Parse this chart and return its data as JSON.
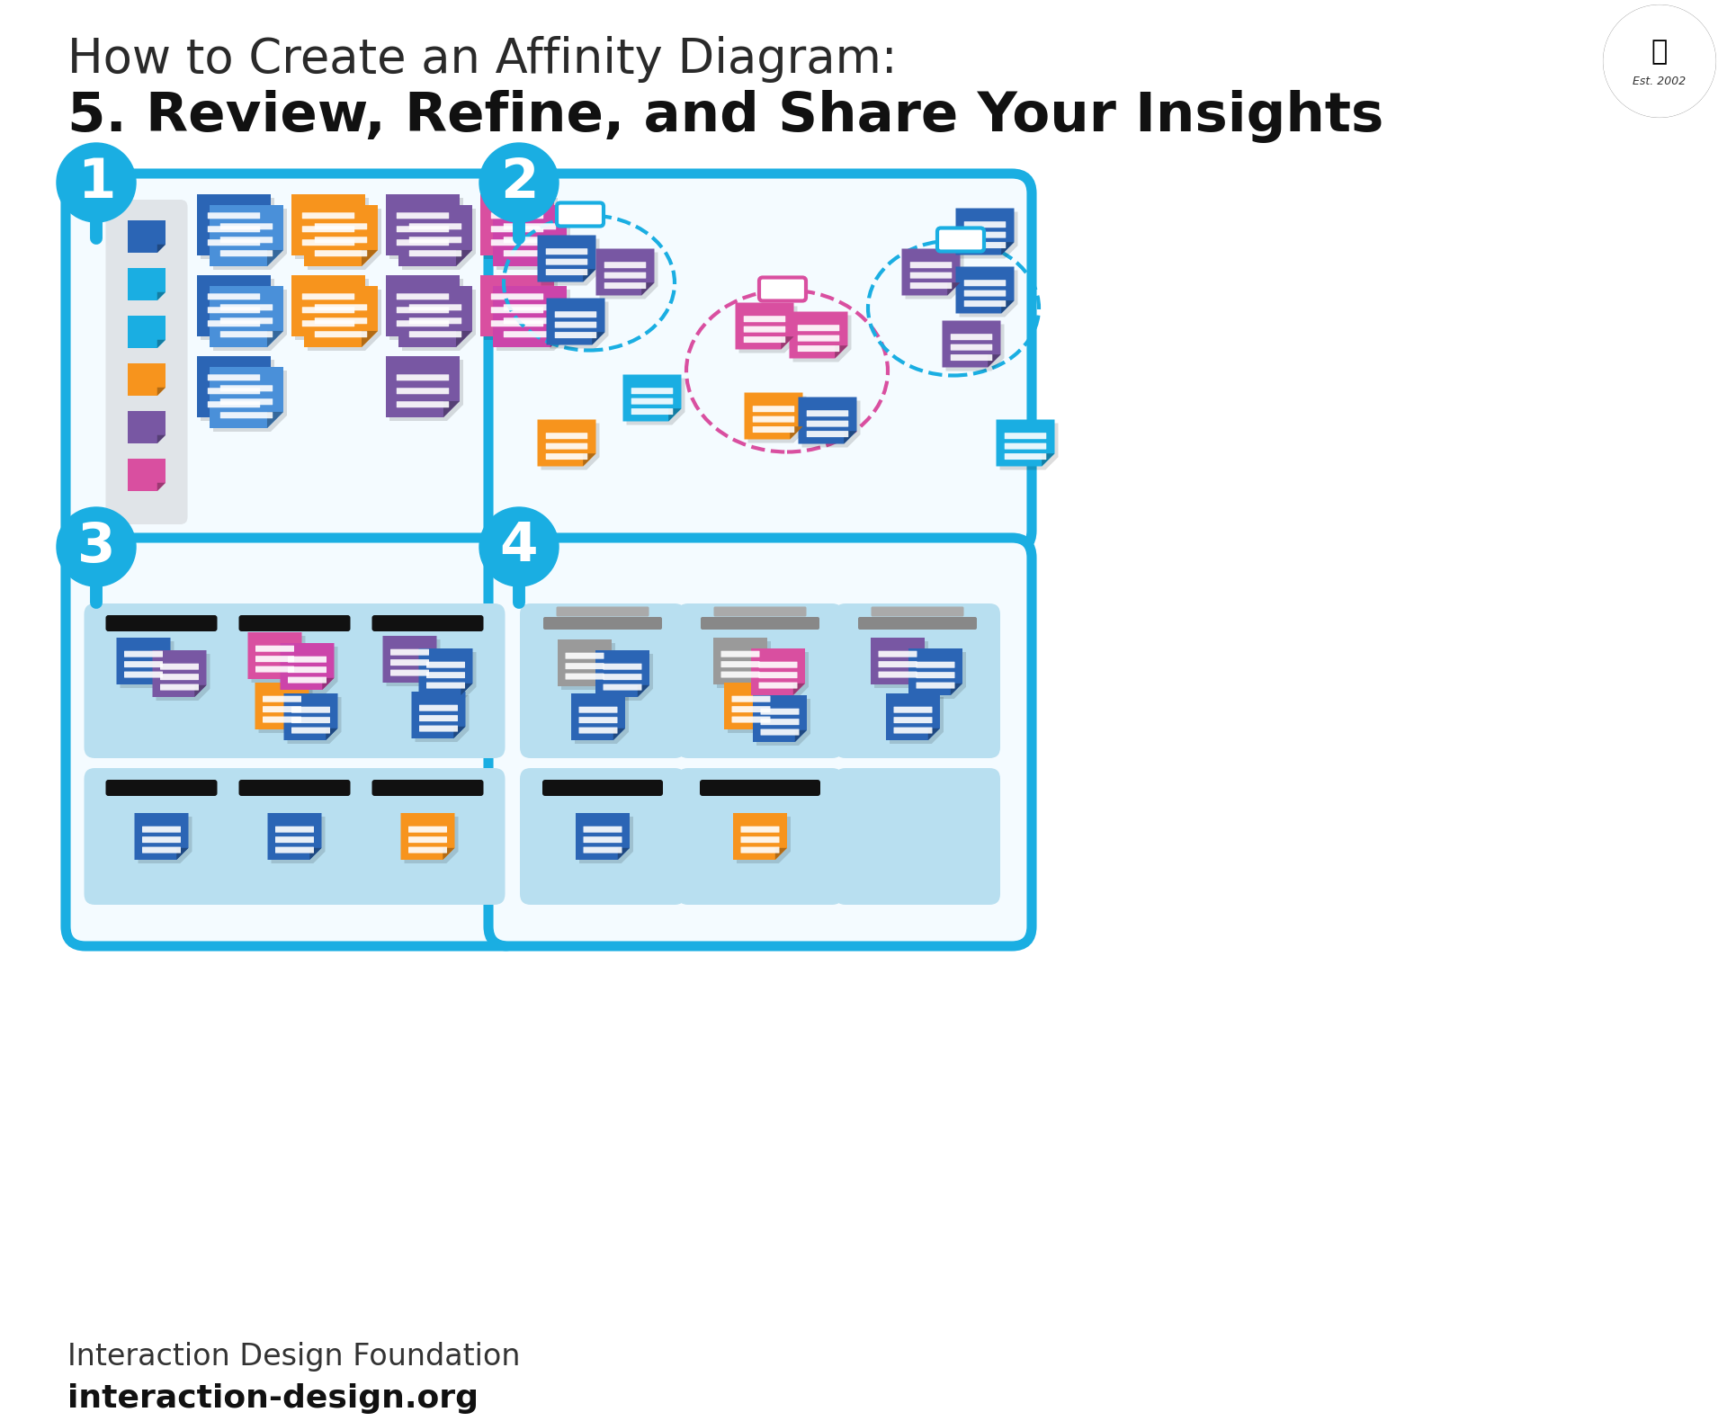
{
  "title_line1": "How to Create an Affinity Diagram:",
  "title_line2": "5. Review, Refine, and Share Your Insights",
  "footer_line1": "Interaction Design Foundation",
  "footer_line2": "interaction-design.org",
  "bg_color": "#ffffff",
  "border_blue": "#1AAEE2",
  "panel_bg": "#f0faff",
  "panel_bg2": "#e8f5fc",
  "section_bg": "#b8dff0",
  "col_bg": "#e0e8ee",
  "dark_blue": "#2B65B5",
  "med_blue": "#4A90D9",
  "light_blue": "#1AAEE2",
  "orange": "#F7941D",
  "purple": "#7857A3",
  "pink": "#D94FA0",
  "magenta": "#CC44AA",
  "gray_note": "#9A9A9A",
  "dark_purple": "#5C3F8A"
}
